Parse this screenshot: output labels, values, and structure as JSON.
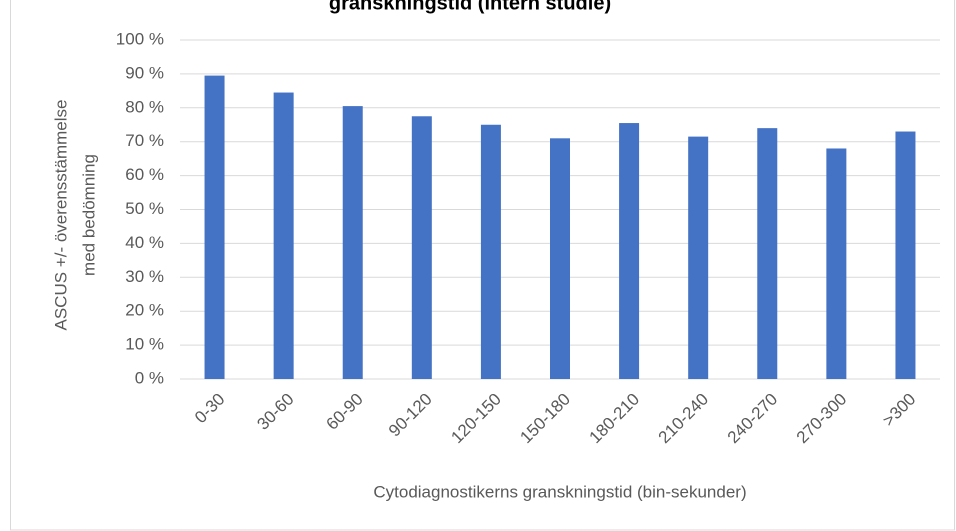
{
  "chart_data": {
    "type": "bar",
    "title": "granskningstid (intern studie)",
    "y_label": [
      "ASCUS +/- överensstämmelse",
      "med bedömning"
    ],
    "x_label": "Cytodiagnostikerns granskningstid (bin-sekunder)",
    "categories": [
      "0-30",
      "30-60",
      "60-90",
      "90-120",
      "120-150",
      "150-180",
      "180-210",
      "210-240",
      "240-270",
      "270-300",
      ">300"
    ],
    "values": [
      89.5,
      84.5,
      80.5,
      77.5,
      75,
      71,
      75.5,
      71.5,
      74,
      68,
      73
    ],
    "color": "#4472c4",
    "ylim": [
      0,
      100
    ],
    "yticks": [
      {
        "value": 0,
        "label": "0 %"
      },
      {
        "value": 10,
        "label": "10 %"
      },
      {
        "value": 20,
        "label": "20 %"
      },
      {
        "value": 30,
        "label": "30 %"
      },
      {
        "value": 40,
        "label": "40 %"
      },
      {
        "value": 50,
        "label": "50 %"
      },
      {
        "value": 60,
        "label": "60 %"
      },
      {
        "value": 70,
        "label": "70 %"
      },
      {
        "value": 80,
        "label": "80 %"
      },
      {
        "value": 90,
        "label": "90 %"
      },
      {
        "value": 100,
        "label": "100 %"
      }
    ],
    "grid": true
  }
}
